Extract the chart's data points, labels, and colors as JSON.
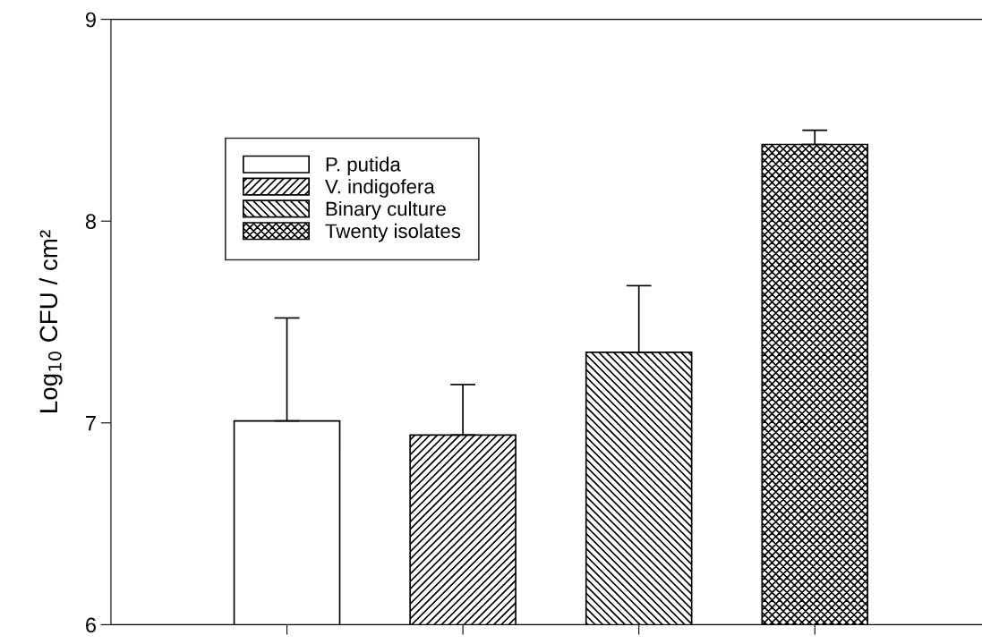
{
  "chart_data": {
    "type": "bar",
    "ylabel": "Log$_{10}$ CFU / cm²",
    "categories": [
      null,
      null,
      null,
      null
    ],
    "series": [
      {
        "name": "P. putida",
        "color": "#ffffff",
        "values": [
          7.01,
          null,
          null,
          null
        ],
        "errors": [
          [
            7.01,
            7.52
          ],
          null,
          null,
          null
        ]
      },
      {
        "name": "V. indigofera",
        "color": "#000000",
        "values": [
          null,
          6.94,
          null,
          null
        ],
        "errors": [
          null,
          [
            6.94,
            7.19
          ],
          null,
          null
        ]
      },
      {
        "name": "Binary culture",
        "color": "#000000",
        "values": [
          null,
          null,
          7.35,
          null
        ],
        "errors": [
          null,
          null,
          [
            7.35,
            7.68
          ],
          null
        ]
      },
      {
        "name": "Twenty isolates",
        "color": "#000000",
        "values": [
          null,
          null,
          null,
          8.38
        ],
        "errors": [
          null,
          null,
          null,
          [
            8.38,
            8.45
          ]
        ]
      }
    ],
    "ylim": [
      6,
      9
    ],
    "yticks": [
      6,
      7,
      8,
      9
    ],
    "grid": false,
    "legend": "top left"
  }
}
